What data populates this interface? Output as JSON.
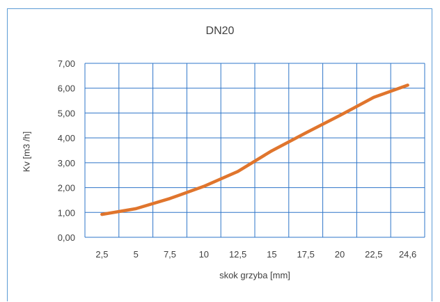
{
  "chart_data": {
    "type": "line",
    "title": "DN20",
    "xlabel": "skok grzyba [mm]",
    "ylabel": "Kv [m3 /h]",
    "categories": [
      "2,5",
      "5",
      "7,5",
      "10",
      "12,5",
      "15",
      "17,5",
      "20",
      "22,5",
      "24,6"
    ],
    "series": [
      {
        "values": [
          0.92,
          1.15,
          1.56,
          2.05,
          2.65,
          3.48,
          4.2,
          4.9,
          5.63,
          6.12
        ]
      }
    ],
    "yticks": [
      "0,00",
      "1,00",
      "2,00",
      "3,00",
      "4,00",
      "5,00",
      "6,00",
      "7,00"
    ],
    "ylim": [
      0,
      7
    ],
    "grid": true,
    "legend": "none",
    "colors": {
      "line": "#e0752d",
      "grid": "#2e75c8",
      "frame": "#5b9bd5",
      "text": "#404040"
    }
  }
}
